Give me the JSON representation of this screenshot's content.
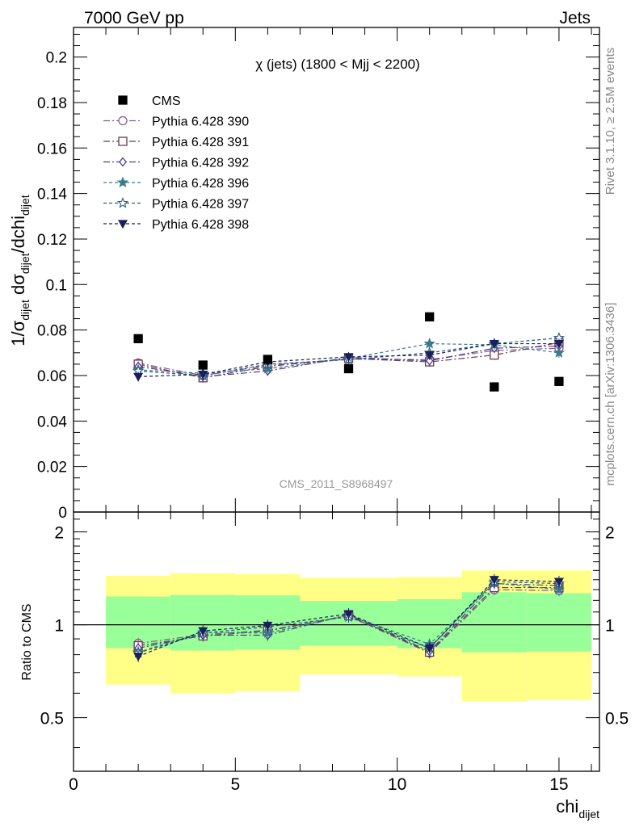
{
  "header": {
    "left": "7000 GeV pp",
    "right": "Jets"
  },
  "side_text": {
    "rivet": "Rivet 3.1.10, ≥ 2.5M events",
    "mcplots": "mcplots.cern.ch [arXiv:1306.3436]"
  },
  "analysis_id": "CMS_2011_S8968497",
  "chart_data": [
    {
      "type": "scatter",
      "title": "χ (jets) (1800 < Mjj < 2200)",
      "ylabel": "1/σ_dijet dσ_dijet/dchi_dijet",
      "xlabel": "chi_dijet",
      "xlim": [
        0,
        16.25
      ],
      "ylim": [
        0,
        0.213
      ],
      "yticks": [
        "0",
        "0.02",
        "0.04",
        "0.06",
        "0.08",
        "0.1",
        "0.12",
        "0.14",
        "0.16",
        "0.18",
        "0.2"
      ],
      "legend_position": "top-left",
      "x": [
        2,
        4,
        6,
        8.5,
        11,
        13,
        15
      ],
      "series": [
        {
          "name": "CMS",
          "color": "#000000",
          "marker": "filled-square",
          "values": [
            0.0762,
            0.0646,
            0.0671,
            0.063,
            0.0858,
            0.055,
            0.0574
          ]
        },
        {
          "name": "Pythia 6.428 390",
          "color": "#8a5a8f",
          "marker": "open-circle",
          "dash": "8,3,2,3",
          "values": [
            0.0655,
            0.06,
            0.0645,
            0.0672,
            0.067,
            0.071,
            0.072
          ]
        },
        {
          "name": "Pythia 6.428 391",
          "color": "#6b3a4f",
          "marker": "open-square",
          "dash": "8,3,2,3",
          "values": [
            0.065,
            0.059,
            0.064,
            0.0675,
            0.066,
            0.069,
            0.0745
          ]
        },
        {
          "name": "Pythia 6.428 392",
          "color": "#4a3a8f",
          "marker": "open-diamond",
          "dash": "8,3,2,3",
          "values": [
            0.064,
            0.0595,
            0.062,
            0.068,
            0.0665,
            0.072,
            0.073
          ]
        },
        {
          "name": "Pythia 6.428 396",
          "color": "#3a7a8a",
          "marker": "filled-star",
          "dash": "4,3",
          "values": [
            0.0625,
            0.061,
            0.063,
            0.0675,
            0.074,
            0.0735,
            0.07
          ]
        },
        {
          "name": "Pythia 6.428 397",
          "color": "#2a5a7a",
          "marker": "open-star",
          "dash": "4,3",
          "values": [
            0.062,
            0.06,
            0.065,
            0.067,
            0.07,
            0.074,
            0.0765
          ]
        },
        {
          "name": "Pythia 6.428 398",
          "color": "#1a1f5a",
          "marker": "filled-triangle-down",
          "dash": "4,3",
          "values": [
            0.0595,
            0.0605,
            0.066,
            0.0682,
            0.069,
            0.074,
            0.074
          ]
        }
      ]
    },
    {
      "type": "scatter",
      "ylabel": "Ratio to CMS",
      "ylim": [
        0.335,
        2.32
      ],
      "ylog": true,
      "yticks": [
        "0.5",
        "1",
        "2"
      ],
      "xticks": [
        "0",
        "5",
        "10",
        "15"
      ],
      "bands": [
        {
          "x": [
            1,
            3
          ],
          "yellow": [
            0.64,
            1.44
          ],
          "green": [
            0.84,
            1.235
          ]
        },
        {
          "x": [
            3,
            5
          ],
          "yellow": [
            0.6,
            1.47
          ],
          "green": [
            0.825,
            1.25
          ]
        },
        {
          "x": [
            5,
            7
          ],
          "yellow": [
            0.61,
            1.46
          ],
          "green": [
            0.83,
            1.245
          ]
        },
        {
          "x": [
            7,
            10
          ],
          "yellow": [
            0.69,
            1.42
          ],
          "green": [
            0.855,
            1.195
          ]
        },
        {
          "x": [
            10,
            12
          ],
          "yellow": [
            0.68,
            1.43
          ],
          "green": [
            0.84,
            1.21
          ]
        },
        {
          "x": [
            12,
            14
          ],
          "yellow": [
            0.565,
            1.5
          ],
          "green": [
            0.815,
            1.275
          ]
        },
        {
          "x": [
            14,
            16
          ],
          "yellow": [
            0.57,
            1.5
          ],
          "green": [
            0.82,
            1.265
          ]
        }
      ],
      "band_colors": {
        "yellow": "#ffff88",
        "green": "#99ff99"
      },
      "series": [
        {
          "name": "Pythia 6.428 390",
          "values": [
            0.87,
            0.93,
            0.96,
            1.068,
            0.81,
            1.3,
            1.29
          ]
        },
        {
          "name": "Pythia 6.428 391",
          "values": [
            0.855,
            0.92,
            0.955,
            1.072,
            0.815,
            1.32,
            1.32
          ]
        },
        {
          "name": "Pythia 6.428 392",
          "values": [
            0.84,
            0.925,
            0.925,
            1.08,
            0.82,
            1.36,
            1.34
          ]
        },
        {
          "name": "Pythia 6.428 396",
          "values": [
            0.815,
            0.945,
            0.94,
            1.072,
            0.865,
            1.365,
            1.3
          ]
        },
        {
          "name": "Pythia 6.428 397",
          "values": [
            0.81,
            0.94,
            0.985,
            1.06,
            0.84,
            1.38,
            1.36
          ]
        },
        {
          "name": "Pythia 6.428 398",
          "values": [
            0.79,
            0.955,
            0.995,
            1.085,
            0.84,
            1.4,
            1.38
          ]
        }
      ]
    }
  ]
}
